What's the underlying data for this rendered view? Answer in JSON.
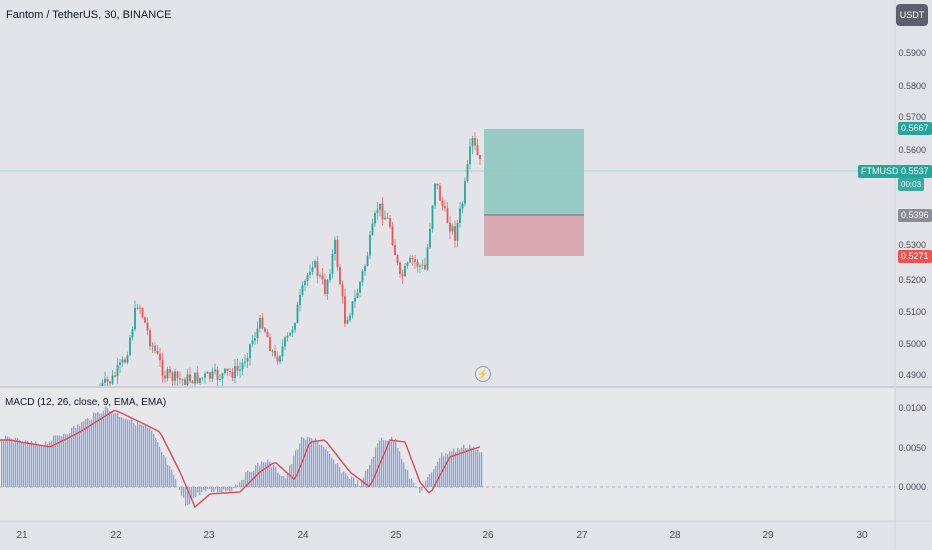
{
  "header": {
    "symbol_title": "Fantom / TetherUS, 30, BINANCE",
    "currency_button": "USDT"
  },
  "price_axis": {
    "ticks": [
      "0.5900",
      "0.5800",
      "0.5700",
      "0.5600",
      "0.5300",
      "0.5200",
      "0.5100",
      "0.5000",
      "0.4900"
    ]
  },
  "price_tags": {
    "target": "0.5667",
    "symbol": "FTMUSDT",
    "last": "0.5537",
    "countdown": "00:03",
    "entry": "0.5396",
    "stop": "0.5271"
  },
  "time_axis": {
    "ticks": [
      "21",
      "22",
      "23",
      "24",
      "25",
      "26",
      "27",
      "28",
      "29",
      "30"
    ]
  },
  "macd": {
    "title": "MACD (12, 26, close, 9, EMA, EMA)",
    "ticks": [
      "0.0100",
      "0.0050",
      "0.0000"
    ]
  },
  "colors": {
    "up": "#26a69a",
    "down": "#ef5350",
    "profit_zone": "#8cc7be",
    "loss_zone": "#d8a0a8",
    "histogram": "#8aa0e0",
    "signal": "#e04a54",
    "last_price": "#26a69a"
  },
  "icons": {
    "replay": "lightning-bolt-icon"
  }
}
